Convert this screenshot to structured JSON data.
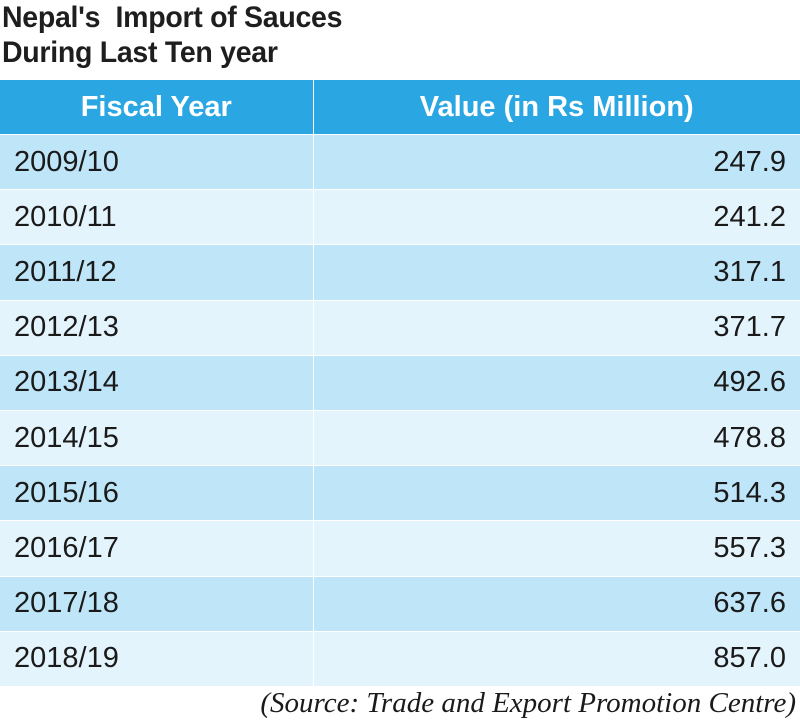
{
  "title_lines": [
    "Nepal's  Import of Sauces",
    "During Last Ten year"
  ],
  "header": {
    "col1": "Fiscal Year",
    "col2": "Value (in Rs Million)"
  },
  "rows": [
    {
      "year": "2009/10",
      "value": "247.9"
    },
    {
      "year": "2010/11",
      "value": "241.2"
    },
    {
      "year": "2011/12",
      "value": "317.1"
    },
    {
      "year": "2012/13",
      "value": "371.7"
    },
    {
      "year": "2013/14",
      "value": "492.6"
    },
    {
      "year": "2014/15",
      "value": "478.8"
    },
    {
      "year": "2015/16",
      "value": "514.3"
    },
    {
      "year": "2016/17",
      "value": "557.3"
    },
    {
      "year": "2017/18",
      "value": "637.6"
    },
    {
      "year": "2018/19",
      "value": "857.0"
    }
  ],
  "source": "(Source: Trade and Export Promotion Centre)",
  "colors": {
    "header_bg": "#2aa7e2",
    "row_dark": "#bfe6f8",
    "row_light": "#e4f4fc"
  },
  "chart_data": {
    "type": "table",
    "title": "Nepal's  Import of Sauces During Last Ten year",
    "columns": [
      "Fiscal Year",
      "Value (in Rs Million)"
    ],
    "categories": [
      "2009/10",
      "2010/11",
      "2011/12",
      "2012/13",
      "2013/14",
      "2014/15",
      "2015/16",
      "2016/17",
      "2017/18",
      "2018/19"
    ],
    "values": [
      247.9,
      241.2,
      317.1,
      371.7,
      492.6,
      478.8,
      514.3,
      557.3,
      637.6,
      857.0
    ]
  }
}
